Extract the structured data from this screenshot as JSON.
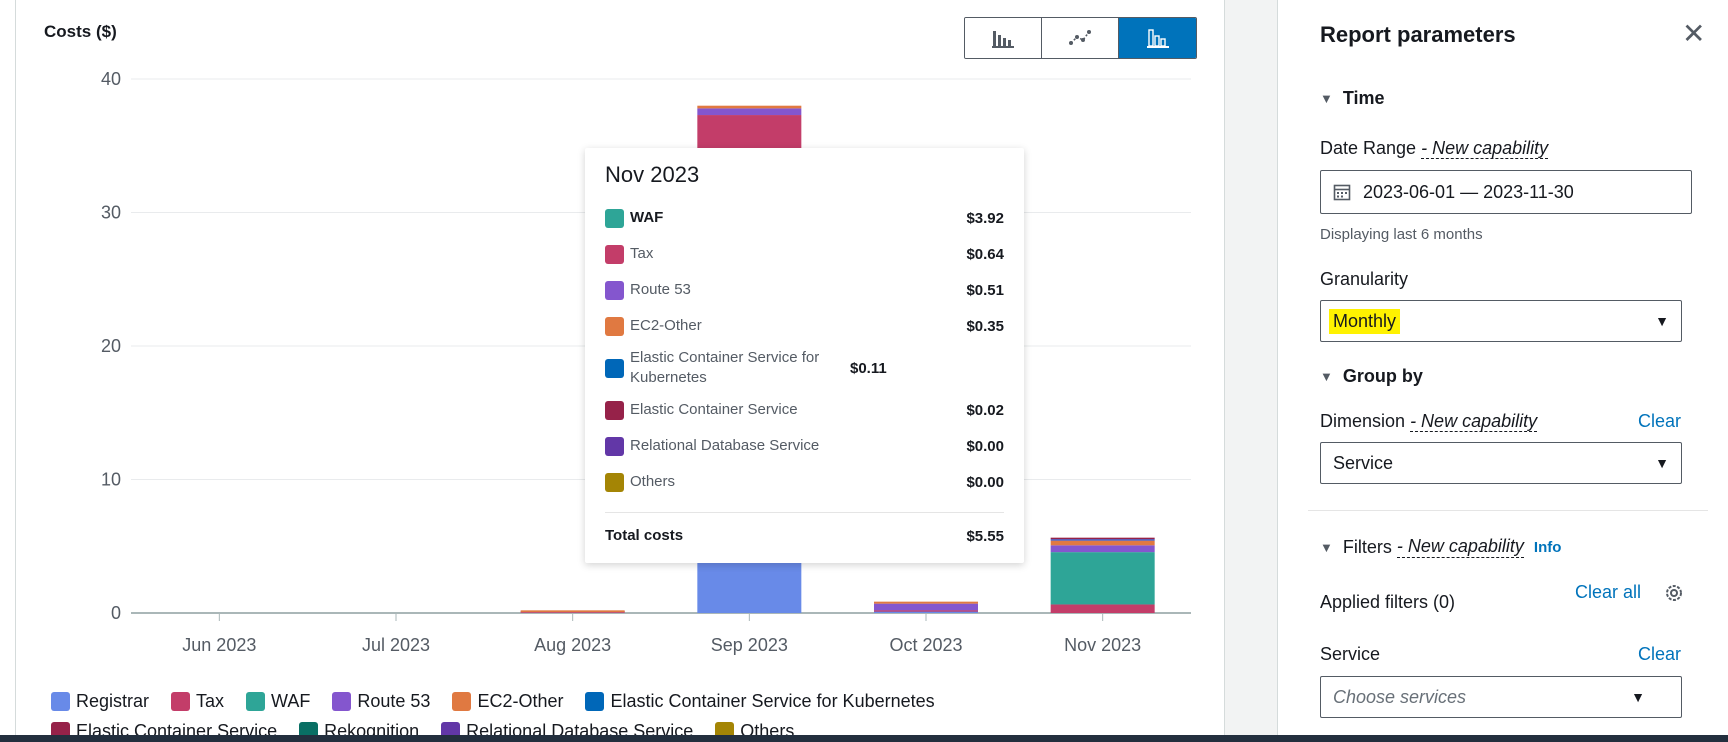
{
  "chart": {
    "title": "Costs ($)",
    "view_buttons": [
      {
        "name": "bar-chart-view-icon",
        "active": false
      },
      {
        "name": "line-chart-view-icon",
        "active": false
      },
      {
        "name": "stacked-bar-chart-view-icon",
        "active": true
      }
    ]
  },
  "chart_data": {
    "type": "bar",
    "stacked": true,
    "title": "",
    "ylabel": "Costs ($)",
    "ylim": [
      0,
      40
    ],
    "yticks": [
      0,
      10,
      20,
      30,
      40
    ],
    "grid": true,
    "legend_position": "bottom",
    "categories": [
      "Jun 2023",
      "Jul 2023",
      "Aug 2023",
      "Sep 2023",
      "Oct 2023",
      "Nov 2023"
    ],
    "series": [
      {
        "name": "Registrar",
        "color": "#688ae8",
        "values": [
          0,
          0,
          0,
          15.0,
          0.1,
          0
        ]
      },
      {
        "name": "Tax",
        "color": "#c33d69",
        "values": [
          0,
          0,
          0.03,
          22.3,
          0.1,
          0.64
        ]
      },
      {
        "name": "WAF",
        "color": "#2ea597",
        "values": [
          0,
          0,
          0,
          0,
          0,
          3.92
        ]
      },
      {
        "name": "Route 53",
        "color": "#8456ce",
        "values": [
          0,
          0,
          0.02,
          0.5,
          0.5,
          0.51
        ]
      },
      {
        "name": "EC2-Other",
        "color": "#e07941",
        "values": [
          0,
          0,
          0.15,
          0.2,
          0.15,
          0.35
        ]
      },
      {
        "name": "Elastic Container Service for Kubernetes",
        "color": "#3759ce",
        "values": [
          0,
          0,
          0,
          0,
          0,
          0.11
        ]
      },
      {
        "name": "Elastic Container Service",
        "color": "#962249",
        "values": [
          0,
          0,
          0,
          0,
          0,
          0.02
        ]
      },
      {
        "name": "Rekognition",
        "color": "#096f64",
        "values": [
          0,
          0,
          0,
          0,
          0,
          0
        ]
      },
      {
        "name": "Relational Database Service",
        "color": "#6237a7",
        "values": [
          0,
          0,
          0,
          0,
          0,
          0.0
        ]
      },
      {
        "name": "Others",
        "color": "#a48505",
        "values": [
          0,
          0,
          0,
          0,
          0,
          0.0
        ]
      }
    ]
  },
  "legend": {
    "items": [
      {
        "name": "Registrar",
        "color": "#688ae8"
      },
      {
        "name": "Tax",
        "color": "#c33d69"
      },
      {
        "name": "WAF",
        "color": "#2ea597"
      },
      {
        "name": "Route 53",
        "color": "#8456ce"
      },
      {
        "name": "EC2-Other",
        "color": "#e07941"
      },
      {
        "name": "Elastic Container Service for Kubernetes",
        "color": "#0067b8"
      },
      {
        "name": "Elastic Container Service",
        "color": "#962249"
      },
      {
        "name": "Rekognition",
        "color": "#096f64"
      },
      {
        "name": "Relational Database Service",
        "color": "#6237a7"
      },
      {
        "name": "Others",
        "color": "#a48505"
      }
    ]
  },
  "tooltip": {
    "title": "Nov 2023",
    "rows": [
      {
        "name": "WAF",
        "value": "$3.92",
        "color": "#2ea597",
        "bold": true
      },
      {
        "name": "Tax",
        "value": "$0.64",
        "color": "#c33d69"
      },
      {
        "name": "Route 53",
        "value": "$0.51",
        "color": "#8456ce"
      },
      {
        "name": "EC2-Other",
        "value": "$0.35",
        "color": "#e07941"
      },
      {
        "name": "Elastic Container Service for Kubernetes",
        "value": "$0.11",
        "color": "#0067b8"
      },
      {
        "name": "Elastic Container Service",
        "value": "$0.02",
        "color": "#962249"
      },
      {
        "name": "Relational Database Service",
        "value": "$0.00",
        "color": "#6237a7"
      },
      {
        "name": "Others",
        "value": "$0.00",
        "color": "#a48505"
      }
    ],
    "total_label": "Total costs",
    "total_value": "$5.55"
  },
  "params": {
    "title": "Report parameters",
    "close_icon": "close-icon",
    "time_section": "Time",
    "date_range_label": "Date Range",
    "new_capability": "- New capability",
    "date_range_value": "2023-06-01 — 2023-11-30",
    "date_range_hint": "Displaying last 6 months",
    "granularity_label": "Granularity",
    "granularity_value": "Monthly",
    "group_by_section": "Group by",
    "dimension_label": "Dimension",
    "clear": "Clear",
    "dimension_value": "Service",
    "filters_section": "Filters",
    "info": "Info",
    "applied_filters": "Applied filters (0)",
    "clear_all": "Clear all",
    "service_label": "Service",
    "service_placeholder": "Choose services"
  }
}
